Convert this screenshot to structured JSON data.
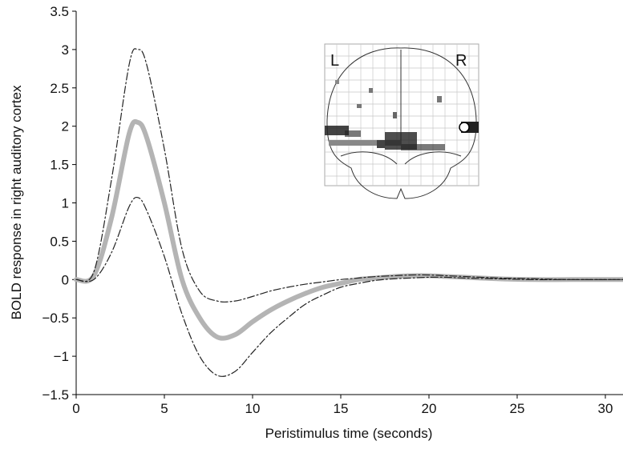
{
  "chart_data": {
    "type": "line",
    "xlabel": "Peristimulus time (seconds)",
    "ylabel": "BOLD response in right auditory cortex",
    "annotations": [
      "L",
      "R"
    ],
    "x": [
      0,
      1,
      2,
      3,
      3.5,
      4,
      5,
      6,
      7,
      8,
      9,
      10,
      11,
      12,
      13,
      14,
      15,
      16,
      17,
      18,
      19,
      20,
      21,
      22,
      24,
      26,
      28,
      31
    ],
    "series": [
      {
        "color": "#b4b4b4",
        "style": "solid",
        "values": [
          0,
          0.05,
          0.8,
          1.9,
          2.05,
          1.85,
          1.0,
          0.0,
          -0.5,
          -0.75,
          -0.72,
          -0.55,
          -0.4,
          -0.28,
          -0.18,
          -0.1,
          -0.05,
          0,
          0.02,
          0.04,
          0.05,
          0.05,
          0.04,
          0.03,
          0.01,
          0,
          0,
          0
        ]
      },
      {
        "color": "#222222",
        "style": "dashdot",
        "values": [
          0,
          0.1,
          1.3,
          2.8,
          3.0,
          2.8,
          1.7,
          0.4,
          -0.15,
          -0.28,
          -0.28,
          -0.22,
          -0.15,
          -0.1,
          -0.06,
          -0.03,
          0,
          0.02,
          0.04,
          0.05,
          0.06,
          0.06,
          0.05,
          0.04,
          0.02,
          0.01,
          0,
          0
        ]
      },
      {
        "color": "#222222",
        "style": "dashdot",
        "values": [
          0,
          0,
          0.35,
          0.95,
          1.07,
          0.9,
          0.3,
          -0.45,
          -1.0,
          -1.25,
          -1.2,
          -0.95,
          -0.7,
          -0.5,
          -0.32,
          -0.2,
          -0.1,
          -0.05,
          -0.01,
          0.01,
          0.02,
          0.03,
          0.03,
          0.02,
          0.01,
          0,
          0,
          0
        ]
      }
    ],
    "xlim": [
      0,
      31
    ],
    "xticks": [
      0,
      5,
      10,
      15,
      20,
      25,
      30
    ],
    "ylim": [
      -1.5,
      3.5
    ],
    "yticks": [
      {
        "value": -1.5,
        "label": "−1.5"
      },
      {
        "value": -1,
        "label": "−1"
      },
      {
        "value": -0.5,
        "label": "−0.5"
      },
      0,
      0.5,
      1,
      1.5,
      2,
      2.5,
      3,
      3.5
    ],
    "grid": false
  }
}
